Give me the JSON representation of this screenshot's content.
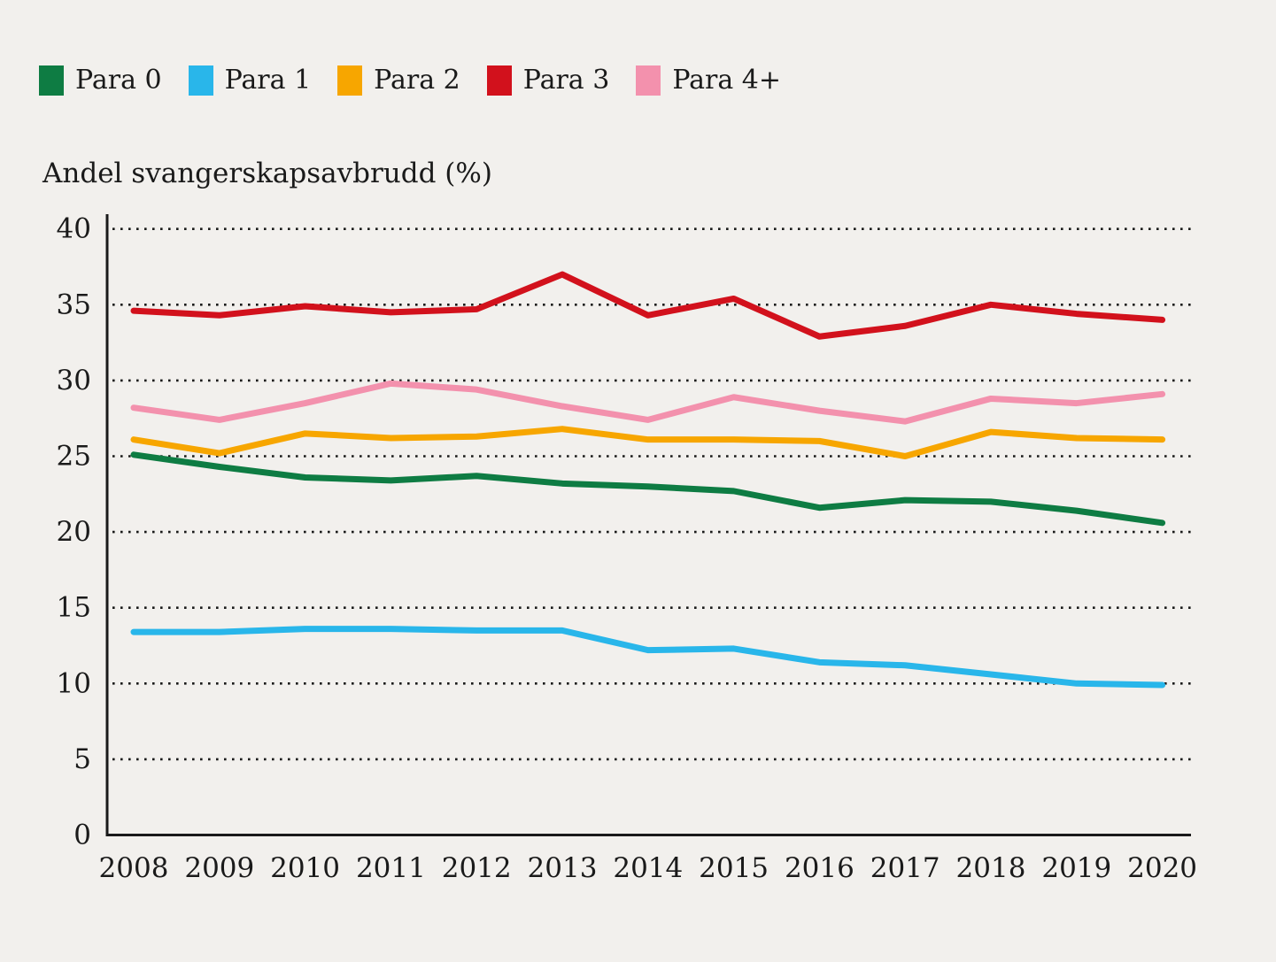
{
  "page": {
    "background_color": "#f2f0ed",
    "text_color": "#1a1a1a"
  },
  "chart_data": {
    "type": "line",
    "title": "Andel svangerskapsavbrudd (%)",
    "xlabel": "",
    "ylabel": "Andel svangerskapsavbrudd (%)",
    "x": [
      "2008",
      "2009",
      "2010",
      "2011",
      "2012",
      "2013",
      "2014",
      "2015",
      "2016",
      "2017",
      "2018",
      "2019",
      "2020"
    ],
    "series": [
      {
        "name": "Para 0",
        "color": "#0e7c43",
        "values": [
          25.1,
          24.3,
          23.6,
          23.4,
          23.7,
          23.2,
          23.0,
          22.7,
          21.6,
          22.1,
          22.0,
          21.4,
          20.6
        ]
      },
      {
        "name": "Para 1",
        "color": "#29b6ea",
        "values": [
          13.4,
          13.4,
          13.6,
          13.6,
          13.5,
          13.5,
          12.2,
          12.3,
          11.4,
          11.2,
          10.6,
          10.0,
          9.9
        ]
      },
      {
        "name": "Para 2",
        "color": "#f7a600",
        "values": [
          26.1,
          25.2,
          26.5,
          26.2,
          26.3,
          26.8,
          26.1,
          26.1,
          26.0,
          25.0,
          26.6,
          26.2,
          26.1
        ]
      },
      {
        "name": "Para 3",
        "color": "#d2111c",
        "values": [
          34.6,
          34.3,
          34.9,
          34.5,
          34.7,
          37.0,
          34.3,
          35.4,
          32.9,
          33.6,
          35.0,
          34.4,
          34.0
        ]
      },
      {
        "name": "Para 4+",
        "color": "#f391ad",
        "values": [
          28.2,
          27.4,
          28.5,
          29.8,
          29.4,
          28.3,
          27.4,
          28.9,
          28.0,
          27.3,
          28.8,
          28.5,
          29.1
        ]
      }
    ],
    "ylim": [
      0,
      40
    ],
    "yticks": [
      0,
      5,
      10,
      15,
      20,
      25,
      30,
      35,
      40
    ],
    "grid": "horizontal-dotted",
    "legend_position": "top-left",
    "axis_color": "#1a1a1a"
  }
}
